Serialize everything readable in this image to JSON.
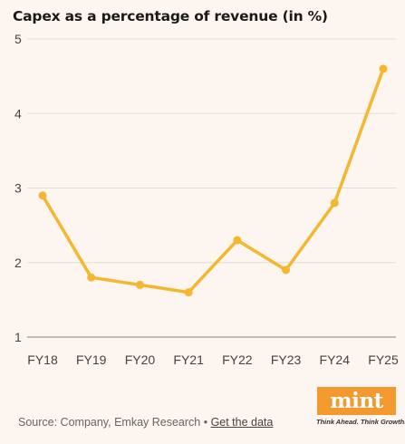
{
  "header": {
    "title": "Capex as a percentage of revenue (in %)"
  },
  "colors": {
    "line": "#f5b730",
    "grid": "#e5dcd5",
    "axis": "#999999",
    "background": "#fdf5ef",
    "brand": "#f39a2f"
  },
  "chart_data": {
    "type": "line",
    "title": "Capex as a percentage of revenue (in %)",
    "xlabel": "",
    "ylabel": "",
    "categories": [
      "FY18",
      "FY19",
      "FY20",
      "FY21",
      "FY22",
      "FY23",
      "FY24",
      "FY25"
    ],
    "series": [
      {
        "values": [
          2.9,
          1.8,
          1.7,
          1.6,
          2.3,
          1.9,
          2.8,
          4.6
        ]
      }
    ],
    "ylim": [
      1,
      5
    ],
    "yticks": [
      "1",
      "2",
      "3",
      "4",
      "5"
    ],
    "grid": true
  },
  "footer": {
    "source": "Source: Company, Emkay Research • ",
    "link": "Get the data"
  },
  "logo": {
    "text": "mint",
    "tagline": "Think Ahead. Think Growth."
  }
}
